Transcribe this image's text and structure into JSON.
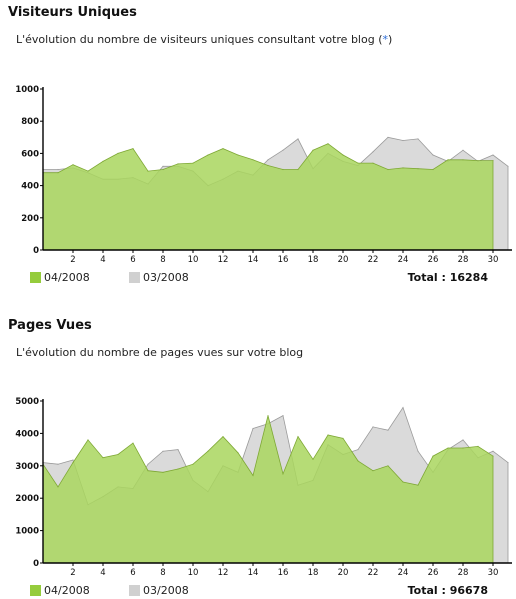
{
  "legend_current": "04/2008",
  "legend_previous": "03/2008",
  "colors": {
    "current_fill": "#a9d65e",
    "current_swatch": "#95cc3c",
    "previous_fill": "#d8d8d8",
    "previous_swatch": "#d0d0d0"
  },
  "visitors": {
    "title": "Visiteurs Uniques",
    "description_prefix": "L'évolution du nombre de visiteurs uniques consultant votre blog (",
    "description_asterisk": "*",
    "description_suffix": ")",
    "total_label": "Total : 16284"
  },
  "pageviews": {
    "title": "Pages Vues",
    "description": "L'évolution du nombre de pages vues sur votre blog",
    "total_label": "Total : 96678"
  },
  "chart_data": [
    {
      "type": "area",
      "ylim": [
        0,
        1000
      ],
      "yticks": [
        "0",
        "200",
        "400",
        "600",
        "800",
        "1000"
      ],
      "xticks": [
        "2",
        "4",
        "6",
        "8",
        "10",
        "12",
        "14",
        "16",
        "18",
        "20",
        "22",
        "24",
        "26",
        "28",
        "30"
      ],
      "legend": "bottom-left",
      "grid": false,
      "series": [
        {
          "name": "03/2008",
          "x": [
            0,
            1,
            2,
            3,
            4,
            5,
            6,
            7,
            8,
            9,
            10,
            11,
            12,
            13,
            14,
            15,
            16,
            17,
            18,
            19,
            20,
            21,
            22,
            23,
            24,
            25,
            26,
            27,
            28,
            29,
            30,
            31
          ],
          "values": [
            500,
            500,
            510,
            480,
            440,
            440,
            450,
            410,
            520,
            520,
            490,
            400,
            440,
            490,
            465,
            560,
            620,
            690,
            505,
            600,
            550,
            525,
            610,
            700,
            680,
            690,
            590,
            550,
            620,
            550,
            590,
            520
          ]
        },
        {
          "name": "04/2008",
          "x": [
            0,
            1,
            2,
            3,
            4,
            5,
            6,
            7,
            8,
            9,
            10,
            11,
            12,
            13,
            14,
            15,
            16,
            17,
            18,
            19,
            20,
            21,
            22,
            23,
            24,
            25,
            26,
            27,
            28,
            29,
            30
          ],
          "values": [
            480,
            480,
            530,
            490,
            550,
            600,
            630,
            490,
            500,
            535,
            540,
            590,
            630,
            590,
            560,
            525,
            500,
            500,
            620,
            660,
            590,
            540,
            540,
            500,
            510,
            505,
            500,
            560,
            560,
            555,
            555
          ]
        }
      ]
    },
    {
      "type": "area",
      "ylim": [
        0,
        5000
      ],
      "yticks": [
        "0",
        "1000",
        "2000",
        "3000",
        "4000",
        "5000"
      ],
      "xticks": [
        "2",
        "4",
        "6",
        "8",
        "10",
        "12",
        "14",
        "16",
        "18",
        "20",
        "22",
        "24",
        "26",
        "28",
        "30"
      ],
      "legend": "bottom-left",
      "grid": false,
      "series": [
        {
          "name": "03/2008",
          "x": [
            0,
            1,
            2,
            3,
            4,
            5,
            6,
            7,
            8,
            9,
            10,
            11,
            12,
            13,
            14,
            15,
            16,
            17,
            18,
            19,
            20,
            21,
            22,
            23,
            24,
            25,
            26,
            27,
            28,
            29,
            30,
            31
          ],
          "values": [
            3100,
            3050,
            3180,
            1800,
            2050,
            2350,
            2300,
            3050,
            3450,
            3500,
            2550,
            2200,
            3000,
            2800,
            4150,
            4300,
            4550,
            2400,
            2550,
            3650,
            3350,
            3500,
            4200,
            4100,
            4800,
            3450,
            2800,
            3500,
            3800,
            3250,
            3450,
            3100
          ]
        },
        {
          "name": "04/2008",
          "x": [
            0,
            1,
            2,
            3,
            4,
            5,
            6,
            7,
            8,
            9,
            10,
            11,
            12,
            13,
            14,
            15,
            16,
            17,
            18,
            19,
            20,
            21,
            22,
            23,
            24,
            25,
            26,
            27,
            28,
            29,
            30
          ],
          "values": [
            3050,
            2350,
            3100,
            3800,
            3250,
            3350,
            3700,
            2850,
            2800,
            2900,
            3050,
            3450,
            3900,
            3400,
            2700,
            4550,
            2750,
            3900,
            3200,
            3950,
            3850,
            3150,
            2850,
            3000,
            2500,
            2400,
            3300,
            3550,
            3550,
            3600,
            3300
          ]
        }
      ]
    }
  ]
}
